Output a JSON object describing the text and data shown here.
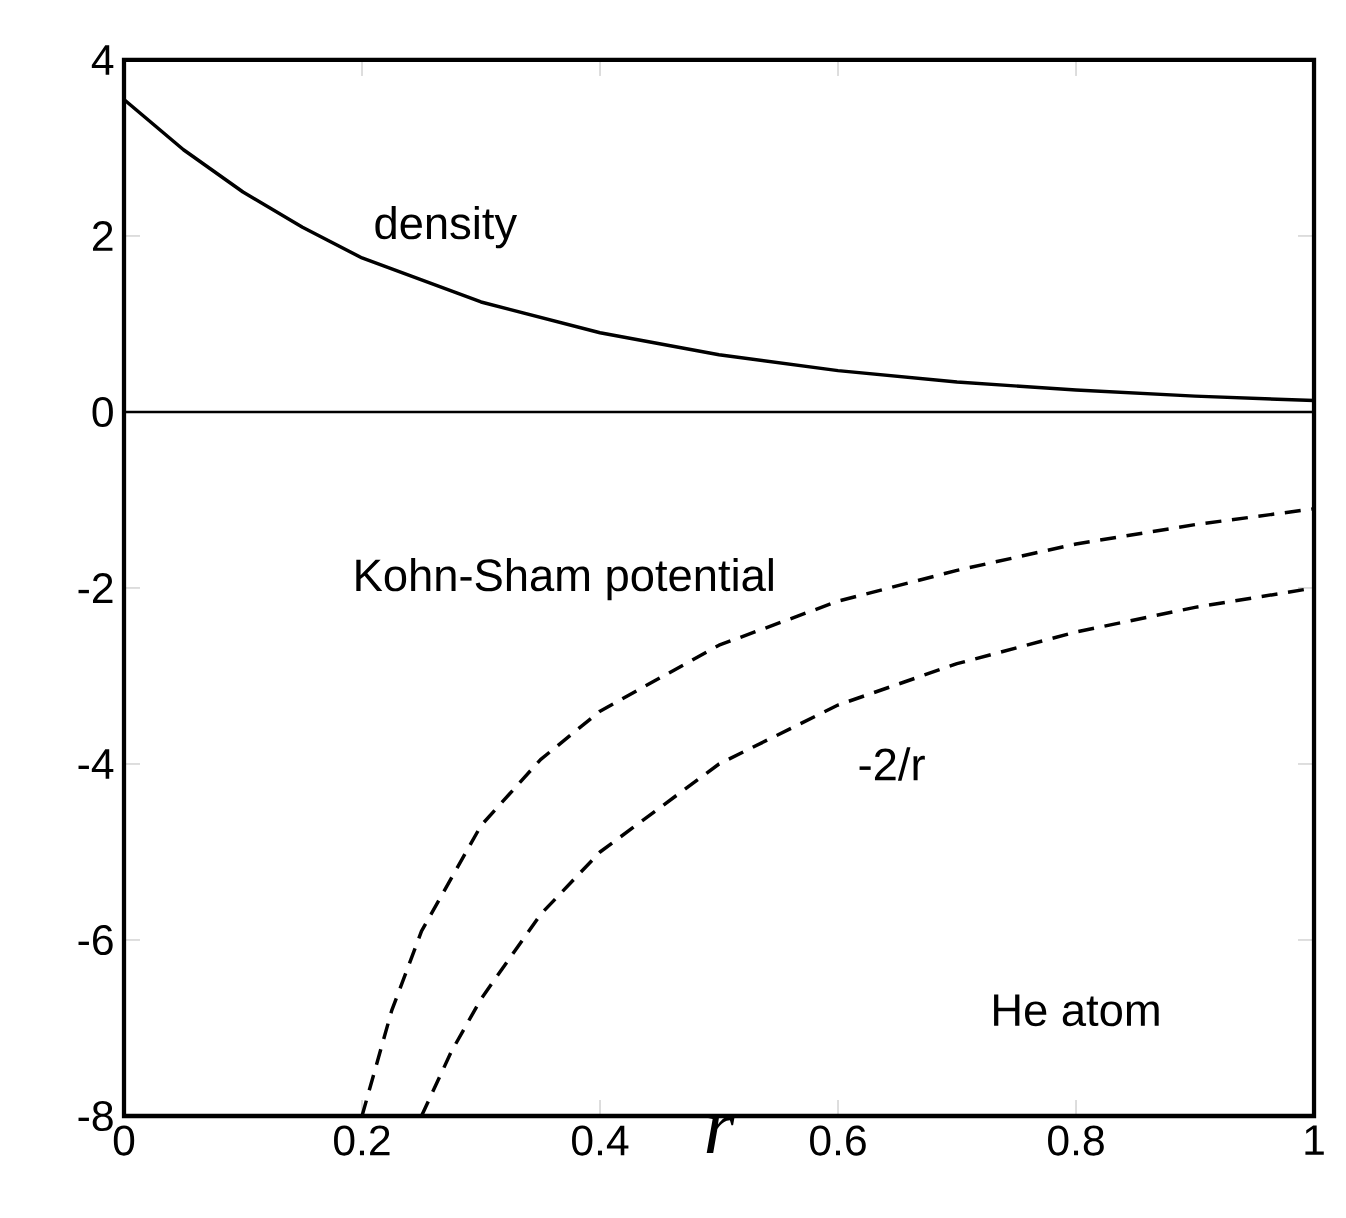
{
  "chart_data": {
    "type": "line",
    "xlabel": "r",
    "x": [
      0,
      0.05,
      0.1,
      0.15,
      0.2,
      0.3,
      0.4,
      0.5,
      0.6,
      0.7,
      0.8,
      0.9,
      1
    ],
    "series": [
      {
        "color": "#000000",
        "line_style": "solid",
        "values": [
          3.55,
          2.98,
          2.5,
          2.1,
          1.75,
          1.25,
          0.9,
          0.65,
          0.47,
          0.34,
          0.25,
          0.18,
          0.13
        ]
      },
      {
        "color": "#000000",
        "line_style": "dashed",
        "x": [
          0.2,
          0.225,
          0.25,
          0.3,
          0.35,
          0.4,
          0.5,
          0.6,
          0.7,
          0.8,
          0.9,
          1
        ],
        "values": [
          -8,
          -6.8,
          -5.9,
          -4.7,
          -3.95,
          -3.4,
          -2.65,
          -2.15,
          -1.8,
          -1.5,
          -1.28,
          -1.1
        ]
      },
      {
        "color": "#000000",
        "line_style": "dashed",
        "x": [
          0.25,
          0.275,
          0.3,
          0.35,
          0.4,
          0.5,
          0.6,
          0.7,
          0.8,
          0.9,
          1
        ],
        "values": [
          -8,
          -7.27,
          -6.67,
          -5.71,
          -5,
          -4,
          -3.33,
          -2.86,
          -2.5,
          -2.22,
          -2
        ]
      }
    ],
    "ref_lines": [
      {
        "axis": "y",
        "value": 0,
        "color": "#000000",
        "line_style": "solid"
      }
    ],
    "annotations": [
      "density",
      "Kohn-Sham potential",
      "-2/r",
      "He atom"
    ],
    "xlim": [
      0,
      1
    ],
    "ylim": [
      -8,
      4
    ],
    "xticks": [
      0,
      0.2,
      0.4,
      0.6,
      0.8,
      1
    ],
    "yticks": [
      -8,
      -6,
      -4,
      -2,
      0,
      2,
      4
    ],
    "marker": "none"
  }
}
